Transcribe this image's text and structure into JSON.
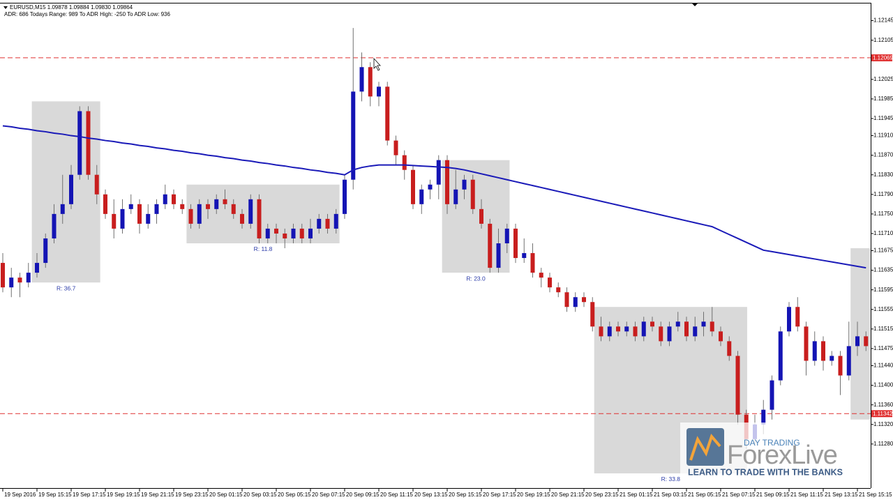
{
  "chart_data": {
    "type": "candlestick",
    "title": "EURUSD,M15  1.09878 1.09884 1.09830 1.09864",
    "subtitle": "ADR: 686  Todays Range: 989  To ADR High: -250  To ADR Low: 936",
    "categories": [
      "19 Sep 2016",
      null,
      null,
      null,
      "19 Sep 15:15",
      null,
      null,
      null,
      "19 Sep 17:15",
      null,
      null,
      null,
      "19 Sep 19:15",
      null,
      null,
      null,
      "19 Sep 21:15",
      null,
      null,
      null,
      "19 Sep 23:15",
      null,
      null,
      null,
      "20 Sep 01:15",
      null,
      null,
      null,
      "20 Sep 03:15",
      null,
      null,
      null,
      "20 Sep 05:15",
      null,
      null,
      null,
      "20 Sep 07:15",
      null,
      null,
      null,
      "20 Sep 09:15",
      null,
      null,
      null,
      "20 Sep 11:15",
      null,
      null,
      null,
      "20 Sep 13:15",
      null,
      null,
      null,
      "20 Sep 15:15",
      null,
      null,
      null,
      "20 Sep 17:15",
      null,
      null,
      null,
      "20 Sep 19:15",
      null,
      null,
      null,
      "20 Sep 21:15",
      null,
      null,
      null,
      "20 Sep 23:15",
      null,
      null,
      null,
      "21 Sep 01:15",
      null,
      null,
      null,
      "21 Sep 03:15",
      null,
      null,
      null,
      "21 Sep 05:15",
      null,
      null,
      null,
      "21 Sep 07:15",
      null,
      null,
      null,
      "21 Sep 09:15",
      null,
      null,
      null,
      "21 Sep 11:15",
      null,
      null,
      null,
      "21 Sep 13:15",
      null,
      null,
      null,
      "21 Sep 15:15",
      null
    ],
    "candles": [
      [
        1.1165,
        1.1167,
        1.1159,
        1.116
      ],
      [
        1.116,
        1.1164,
        1.1158,
        1.1162
      ],
      [
        1.1162,
        1.1163,
        1.1158,
        1.1161
      ],
      [
        1.1161,
        1.1165,
        1.116,
        1.1163
      ],
      [
        1.1163,
        1.1167,
        1.1162,
        1.1165
      ],
      [
        1.1165,
        1.1171,
        1.1164,
        1.117
      ],
      [
        1.117,
        1.1177,
        1.1169,
        1.1175
      ],
      [
        1.1175,
        1.1183,
        1.1173,
        1.1177
      ],
      [
        1.1177,
        1.1185,
        1.1176,
        1.1183
      ],
      [
        1.1183,
        1.1197,
        1.1182,
        1.1196
      ],
      [
        1.1196,
        1.1197,
        1.1182,
        1.1183
      ],
      [
        1.1183,
        1.1185,
        1.1177,
        1.1179
      ],
      [
        1.1179,
        1.118,
        1.1174,
        1.1175
      ],
      [
        1.1175,
        1.1178,
        1.117,
        1.1172
      ],
      [
        1.1172,
        1.1178,
        1.1171,
        1.1176
      ],
      [
        1.1176,
        1.1179,
        1.1175,
        1.1177
      ],
      [
        1.1177,
        1.1178,
        1.1171,
        1.1173
      ],
      [
        1.1173,
        1.1177,
        1.1172,
        1.1175
      ],
      [
        1.1175,
        1.1178,
        1.1173,
        1.1177
      ],
      [
        1.1177,
        1.1181,
        1.1176,
        1.1179
      ],
      [
        1.1179,
        1.118,
        1.1176,
        1.1177
      ],
      [
        1.1177,
        1.1178,
        1.1175,
        1.1176
      ],
      [
        1.1176,
        1.1177,
        1.1172,
        1.1173
      ],
      [
        1.1173,
        1.1178,
        1.1172,
        1.1177
      ],
      [
        1.1177,
        1.1178,
        1.1174,
        1.1176
      ],
      [
        1.1176,
        1.1179,
        1.1175,
        1.1178
      ],
      [
        1.1178,
        1.118,
        1.1176,
        1.1177
      ],
      [
        1.1177,
        1.1178,
        1.1174,
        1.1175
      ],
      [
        1.1175,
        1.1176,
        1.1172,
        1.1173
      ],
      [
        1.1173,
        1.1179,
        1.1172,
        1.1178
      ],
      [
        1.1178,
        1.1179,
        1.1169,
        1.117
      ],
      [
        1.117,
        1.1173,
        1.1169,
        1.1172
      ],
      [
        1.1172,
        1.1173,
        1.1169,
        1.1171
      ],
      [
        1.1171,
        1.1172,
        1.1168,
        1.117
      ],
      [
        1.117,
        1.1173,
        1.1169,
        1.1172
      ],
      [
        1.1172,
        1.1173,
        1.1169,
        1.117
      ],
      [
        1.117,
        1.1174,
        1.1169,
        1.1172
      ],
      [
        1.1172,
        1.1175,
        1.1171,
        1.1174
      ],
      [
        1.1174,
        1.1175,
        1.1171,
        1.1172
      ],
      [
        1.1172,
        1.1176,
        1.1171,
        1.1175
      ],
      [
        1.1175,
        1.1183,
        1.1174,
        1.1182
      ],
      [
        1.1182,
        1.1213,
        1.118,
        1.12
      ],
      [
        1.12,
        1.1208,
        1.1198,
        1.1205
      ],
      [
        1.1205,
        1.1206,
        1.1197,
        1.1199
      ],
      [
        1.1199,
        1.1202,
        1.1197,
        1.1201
      ],
      [
        1.1201,
        1.1202,
        1.1189,
        1.119
      ],
      [
        1.119,
        1.1191,
        1.1185,
        1.1187
      ],
      [
        1.1187,
        1.1188,
        1.1182,
        1.1184
      ],
      [
        1.1184,
        1.1185,
        1.1176,
        1.1177
      ],
      [
        1.1177,
        1.1181,
        1.1175,
        1.118
      ],
      [
        1.118,
        1.1182,
        1.1178,
        1.1181
      ],
      [
        1.1181,
        1.1187,
        1.1178,
        1.1186
      ],
      [
        1.1186,
        1.1187,
        1.1175,
        1.1177
      ],
      [
        1.1177,
        1.1184,
        1.1176,
        1.118
      ],
      [
        1.118,
        1.1183,
        1.1178,
        1.1182
      ],
      [
        1.1182,
        1.1183,
        1.1175,
        1.1176
      ],
      [
        1.1176,
        1.1178,
        1.1172,
        1.1173
      ],
      [
        1.1173,
        1.1174,
        1.1163,
        1.1164
      ],
      [
        1.1164,
        1.1172,
        1.1163,
        1.1169
      ],
      [
        1.1169,
        1.1173,
        1.1167,
        1.1172
      ],
      [
        1.1172,
        1.1173,
        1.1165,
        1.1166
      ],
      [
        1.1166,
        1.117,
        1.1165,
        1.1167
      ],
      [
        1.1167,
        1.1169,
        1.1162,
        1.1163
      ],
      [
        1.1163,
        1.1164,
        1.116,
        1.1162
      ],
      [
        1.1162,
        1.1163,
        1.1159,
        1.116
      ],
      [
        1.116,
        1.1161,
        1.1158,
        1.1159
      ],
      [
        1.1159,
        1.116,
        1.1155,
        1.1156
      ],
      [
        1.1156,
        1.1159,
        1.1155,
        1.1158
      ],
      [
        1.1158,
        1.1159,
        1.1156,
        1.1157
      ],
      [
        1.1157,
        1.1158,
        1.1151,
        1.1152
      ],
      [
        1.1152,
        1.1154,
        1.1149,
        1.115
      ],
      [
        1.115,
        1.1153,
        1.1149,
        1.1152
      ],
      [
        1.1152,
        1.1153,
        1.115,
        1.1151
      ],
      [
        1.1151,
        1.1153,
        1.115,
        1.1152
      ],
      [
        1.1152,
        1.1153,
        1.1149,
        1.115
      ],
      [
        1.115,
        1.1154,
        1.1149,
        1.1153
      ],
      [
        1.1153,
        1.1154,
        1.1151,
        1.1152
      ],
      [
        1.1152,
        1.1153,
        1.1148,
        1.1149
      ],
      [
        1.1149,
        1.1153,
        1.1148,
        1.1152
      ],
      [
        1.1152,
        1.1155,
        1.1151,
        1.1153
      ],
      [
        1.1153,
        1.1154,
        1.1149,
        1.115
      ],
      [
        1.115,
        1.1154,
        1.1149,
        1.1152
      ],
      [
        1.1152,
        1.1155,
        1.115,
        1.1153
      ],
      [
        1.1153,
        1.1156,
        1.115,
        1.1151
      ],
      [
        1.1151,
        1.1152,
        1.1148,
        1.1149
      ],
      [
        1.1149,
        1.115,
        1.1145,
        1.1146
      ],
      [
        1.1146,
        1.1147,
        1.1132,
        1.1134
      ],
      [
        1.1134,
        1.1135,
        1.1127,
        1.1129
      ],
      [
        1.1129,
        1.1134,
        1.1128,
        1.1132
      ],
      [
        1.1132,
        1.1137,
        1.113,
        1.1135
      ],
      [
        1.1135,
        1.1142,
        1.1133,
        1.1141
      ],
      [
        1.1141,
        1.1152,
        1.114,
        1.1151
      ],
      [
        1.1151,
        1.1157,
        1.115,
        1.1156
      ],
      [
        1.1156,
        1.1158,
        1.1151,
        1.1152
      ],
      [
        1.1152,
        1.1153,
        1.1142,
        1.1145
      ],
      [
        1.1145,
        1.1151,
        1.1144,
        1.1149
      ],
      [
        1.1149,
        1.115,
        1.1143,
        1.1145
      ],
      [
        1.1145,
        1.1147,
        1.1144,
        1.1146
      ],
      [
        1.1146,
        1.1147,
        1.1138,
        1.1142
      ],
      [
        1.1142,
        1.1153,
        1.1141,
        1.1148
      ],
      [
        1.1148,
        1.1153,
        1.1146,
        1.115
      ],
      [
        1.115,
        1.1151,
        1.1147,
        1.1148
      ]
    ],
    "up_color": "#1414b4",
    "down_color": "#c81e1e",
    "wick_color": "#707070",
    "moving_average": {
      "color": "#1a1ab8",
      "values": [
        1.1193,
        1.11928,
        1.11925,
        1.11923,
        1.1192,
        1.11918,
        1.11915,
        1.11913,
        1.1191,
        1.11908,
        1.11905,
        1.11903,
        1.119,
        1.11898,
        1.11895,
        1.11893,
        1.1189,
        1.11888,
        1.11885,
        1.11883,
        1.1188,
        1.11878,
        1.11875,
        1.11873,
        1.1187,
        1.11868,
        1.11865,
        1.11863,
        1.1186,
        1.11858,
        1.11855,
        1.11853,
        1.1185,
        1.11848,
        1.11845,
        1.11843,
        1.1184,
        1.11838,
        1.11835,
        1.11833,
        1.1183,
        1.1184,
        1.11845,
        1.11848,
        1.1185,
        1.1185,
        1.1185,
        1.1185,
        1.11849,
        1.11848,
        1.11847,
        1.11846,
        1.11845,
        1.11843,
        1.1184,
        1.11836,
        1.11832,
        1.11828,
        1.11824,
        1.1182,
        1.11816,
        1.11812,
        1.11808,
        1.11804,
        1.118,
        1.11796,
        1.11792,
        1.11788,
        1.11784,
        1.1178,
        1.11776,
        1.11772,
        1.11768,
        1.11764,
        1.1176,
        1.11756,
        1.11752,
        1.11748,
        1.11744,
        1.1174,
        1.11736,
        1.11732,
        1.11728,
        1.11724,
        1.11716,
        1.11708,
        1.117,
        1.11692,
        1.11684,
        1.11676,
        1.11673,
        1.1167,
        1.11667,
        1.11664,
        1.11661,
        1.11658,
        1.11655,
        1.11652,
        1.11649,
        1.11646,
        1.11643,
        1.1164
      ]
    },
    "ranges": [
      {
        "label": "R: 36.7",
        "high": 1.1198,
        "low": 1.1161
      },
      {
        "label": "R: 11.8",
        "high": 1.1181,
        "low": 1.1169
      },
      {
        "label": "R: 23.0",
        "high": 1.1186,
        "low": 1.1163
      },
      {
        "label": "R: 33.8",
        "high": 1.1156,
        "low": 1.1122
      },
      {
        "high": 1.1168,
        "low": 1.1133
      }
    ],
    "range_color": "#d9d9d9",
    "levels": [
      1.12069,
      1.11342
    ],
    "level_color": "#e03030",
    "ylim": [
      1.1119,
      1.1218
    ],
    "yticks": [
      1.12145,
      1.12105,
      1.12025,
      1.11985,
      1.11945,
      {
        "value": 1.1191,
        "label": "1.11910"
      },
      {
        "value": 1.1187,
        "label": "1.11870"
      },
      {
        "value": 1.1183,
        "label": "1.11830"
      },
      {
        "value": 1.1179,
        "label": "1.11790"
      },
      {
        "value": 1.1175,
        "label": "1.11750"
      },
      {
        "value": 1.1171,
        "label": "1.11710"
      },
      1.11675,
      1.11635,
      1.11595,
      1.11555,
      1.11515,
      1.11475,
      {
        "value": 1.1144,
        "label": "1.11440"
      },
      {
        "value": 1.114,
        "label": "1.11400"
      },
      {
        "value": 1.1136,
        "label": "1.11360"
      },
      {
        "value": 1.1132,
        "label": "1.11320"
      },
      {
        "value": 1.1128,
        "label": "1.11280"
      }
    ],
    "grid": false
  },
  "watermark": {
    "tagline": "DAY TRADING",
    "brand": "ForexLive",
    "slogan": "LEARN TO TRADE WITH THE BANKS"
  }
}
